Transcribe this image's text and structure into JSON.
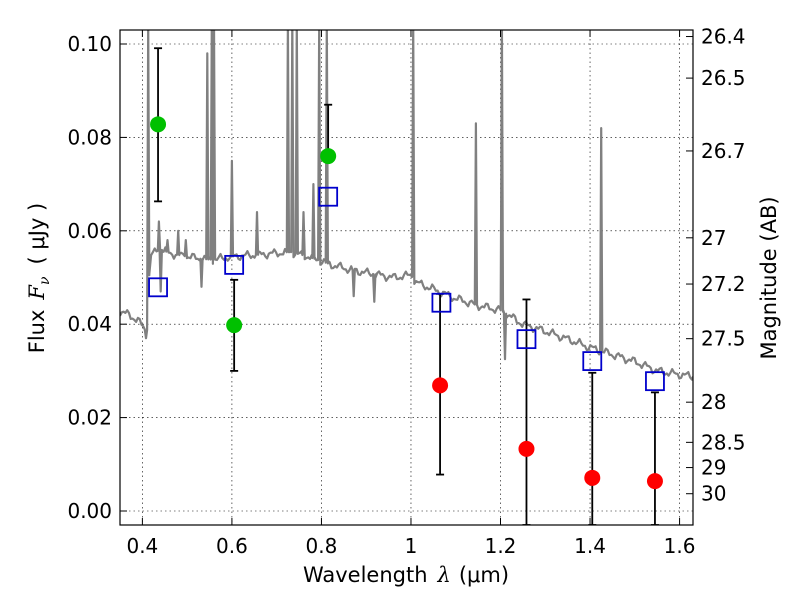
{
  "chart_data": {
    "type": "scatter",
    "xlabel_prefix": "Wavelength",
    "xlabel_symbol": "λ",
    "xlabel_unit": "(μm)",
    "ylabel_prefix": "Flux",
    "ylabel_symbol_base": "F",
    "ylabel_symbol_sub": "ν",
    "ylabel_unit": "( μJy )",
    "y2label": "Magnitude (AB)",
    "xlim": [
      0.35,
      1.63
    ],
    "ylim": [
      -0.003,
      0.103
    ],
    "grid": true,
    "x_ticks": [
      0.4,
      0.6,
      0.8,
      1.0,
      1.2,
      1.4,
      1.6
    ],
    "x_tick_labels": [
      "0.4",
      "0.6",
      "0.8",
      "1",
      "1.2",
      "1.4",
      "1.6"
    ],
    "y_ticks": [
      0.0,
      0.02,
      0.04,
      0.06,
      0.08,
      0.1
    ],
    "y_tick_labels": [
      "0.00",
      "0.02",
      "0.04",
      "0.06",
      "0.08",
      "0.10"
    ],
    "y2_ticks": [
      {
        "label": "26.4",
        "flux": 0.1016
      },
      {
        "label": "26.5",
        "flux": 0.0927
      },
      {
        "label": "26.7",
        "flux": 0.0771
      },
      {
        "label": "27",
        "flux": 0.0585
      },
      {
        "label": "27.2",
        "flux": 0.0486
      },
      {
        "label": "27.5",
        "flux": 0.0369
      },
      {
        "label": "28",
        "flux": 0.0233
      },
      {
        "label": "28.5",
        "flux": 0.0147
      },
      {
        "label": "29",
        "flux": 0.0093
      },
      {
        "label": "30",
        "flux": 0.0037
      }
    ],
    "template_spectrum": {
      "name": "model SED",
      "color": "#808080",
      "continuum": [
        [
          0.35,
          0.0428
        ],
        [
          0.37,
          0.042
        ],
        [
          0.39,
          0.0408
        ],
        [
          0.405,
          0.039
        ],
        [
          0.41,
          0.0375
        ],
        [
          0.415,
          0.05
        ],
        [
          0.42,
          0.055
        ],
        [
          0.44,
          0.056
        ],
        [
          0.47,
          0.055
        ],
        [
          0.5,
          0.0545
        ],
        [
          0.53,
          0.054
        ],
        [
          0.56,
          0.0538
        ],
        [
          0.6,
          0.0545
        ],
        [
          0.65,
          0.0548
        ],
        [
          0.7,
          0.0552
        ],
        [
          0.73,
          0.0555
        ],
        [
          0.77,
          0.0545
        ],
        [
          0.8,
          0.0535
        ],
        [
          0.83,
          0.0525
        ],
        [
          0.86,
          0.0518
        ],
        [
          0.9,
          0.051
        ],
        [
          0.93,
          0.0505
        ],
        [
          0.96,
          0.05
        ],
        [
          1.0,
          0.0505
        ],
        [
          1.01,
          0.049
        ],
        [
          1.05,
          0.0475
        ],
        [
          1.1,
          0.0455
        ],
        [
          1.15,
          0.044
        ],
        [
          1.2,
          0.043
        ],
        [
          1.25,
          0.04
        ],
        [
          1.3,
          0.0385
        ],
        [
          1.35,
          0.0368
        ],
        [
          1.4,
          0.035
        ],
        [
          1.45,
          0.0335
        ],
        [
          1.5,
          0.032
        ],
        [
          1.55,
          0.03
        ],
        [
          1.6,
          0.0292
        ],
        [
          1.63,
          0.0288
        ]
      ],
      "emission_lines": [
        [
          0.413,
          0.105
        ],
        [
          0.437,
          0.062
        ],
        [
          0.456,
          0.058
        ],
        [
          0.48,
          0.06
        ],
        [
          0.497,
          0.058
        ],
        [
          0.545,
          0.098
        ],
        [
          0.555,
          0.105
        ],
        [
          0.56,
          0.105
        ],
        [
          0.6,
          0.075
        ],
        [
          0.656,
          0.064
        ],
        [
          0.725,
          0.105
        ],
        [
          0.735,
          0.105
        ],
        [
          0.745,
          0.105
        ],
        [
          0.76,
          0.064
        ],
        [
          0.782,
          0.07
        ],
        [
          0.795,
          0.105
        ],
        [
          0.812,
          0.105
        ],
        [
          1.005,
          0.105
        ],
        [
          1.145,
          0.083
        ],
        [
          1.203,
          0.105
        ],
        [
          1.425,
          0.082
        ]
      ],
      "absorption_lines": [
        [
          0.408,
          0.037
        ],
        [
          0.441,
          0.047
        ],
        [
          0.532,
          0.048
        ],
        [
          0.872,
          0.046
        ],
        [
          0.918,
          0.0448
        ],
        [
          1.21,
          0.0325
        ]
      ]
    },
    "series": [
      {
        "name": "green detections",
        "color": "#00c000",
        "marker": "circle",
        "points": [
          {
            "x": 0.435,
            "y": 0.0828,
            "err_low": 0.0165,
            "err_high": 0.0163
          },
          {
            "x": 0.605,
            "y": 0.0398,
            "err_low": 0.0098,
            "err_high": 0.0097
          },
          {
            "x": 0.815,
            "y": 0.076,
            "err_low": 0.0,
            "err_high": 0.011
          }
        ]
      },
      {
        "name": "red detections",
        "color": "#ff0000",
        "marker": "circle",
        "points": [
          {
            "x": 1.065,
            "y": 0.0269,
            "err_low": 0.0191,
            "err_high": 0.0196
          },
          {
            "x": 1.258,
            "y": 0.0133,
            "err_low": 0.0163,
            "err_high": 0.032
          },
          {
            "x": 1.405,
            "y": 0.0071,
            "err_low": 0.0101,
            "err_high": 0.0225
          },
          {
            "x": 1.545,
            "y": 0.0064,
            "err_low": 0.0094,
            "err_high": 0.019
          }
        ]
      },
      {
        "name": "model photometry",
        "color": "#0000cc",
        "marker": "square-open",
        "points": [
          {
            "x": 0.435,
            "y": 0.0479
          },
          {
            "x": 0.605,
            "y": 0.0527
          },
          {
            "x": 0.815,
            "y": 0.0673
          },
          {
            "x": 1.068,
            "y": 0.0446
          },
          {
            "x": 1.258,
            "y": 0.0368
          },
          {
            "x": 1.405,
            "y": 0.0321
          },
          {
            "x": 1.545,
            "y": 0.0278
          }
        ]
      }
    ]
  }
}
